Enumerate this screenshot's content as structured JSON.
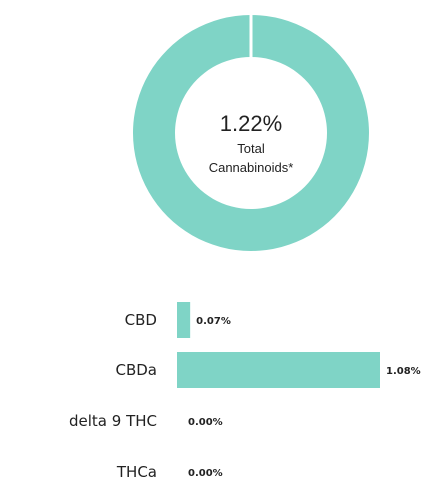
{
  "colors": {
    "accent": "#7fd4c6",
    "divider": "#ffffff",
    "text": "#222222"
  },
  "chart_data": [
    {
      "type": "pie",
      "center_value": "1.22%",
      "center_label_line1": "Total",
      "center_label_line2": "Cannabinoids*",
      "slices": [
        {
          "label": "",
          "value": 100
        }
      ]
    },
    {
      "type": "bar",
      "orientation": "horizontal",
      "categories": [
        "CBD",
        "CBDa",
        "delta 9 THC",
        "THCa"
      ],
      "values": [
        0.07,
        1.08,
        0.0,
        0.0
      ],
      "value_labels": [
        "0.07%",
        "1.08%",
        "0.00%",
        "0.00%"
      ],
      "unit": "%"
    }
  ]
}
